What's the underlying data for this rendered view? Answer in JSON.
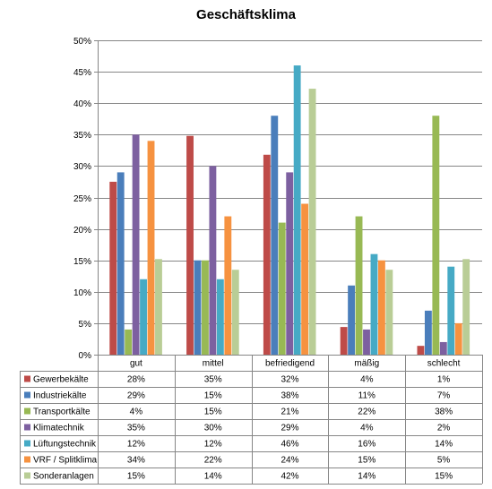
{
  "chart_data": {
    "type": "bar",
    "title": "Geschäftsklima",
    "categories": [
      "gut",
      "mittel",
      "befriedigend",
      "mäßig",
      "schlecht"
    ],
    "ylim": [
      0,
      50
    ],
    "yticks": [
      "0%",
      "5%",
      "10%",
      "15%",
      "20%",
      "25%",
      "30%",
      "35%",
      "40%",
      "45%",
      "50%"
    ],
    "grid": true,
    "legend": "data table below plot",
    "series": [
      {
        "name": "Gewerbekälte",
        "color": "#be4b48",
        "values": [
          27.5,
          34.8,
          31.8,
          4.4,
          1.4
        ],
        "labels": [
          "28%",
          "35%",
          "32%",
          "4%",
          "1%"
        ]
      },
      {
        "name": "Industriekälte",
        "color": "#4a7ebb",
        "values": [
          29.0,
          15.0,
          38.0,
          11.0,
          7.0
        ],
        "labels": [
          "29%",
          "15%",
          "38%",
          "11%",
          "7%"
        ]
      },
      {
        "name": "Transportkälte",
        "color": "#98b954",
        "values": [
          4.0,
          15.0,
          21.0,
          22.0,
          38.0
        ],
        "labels": [
          "4%",
          "15%",
          "21%",
          "22%",
          "38%"
        ]
      },
      {
        "name": "Klimatechnik",
        "color": "#7d60a0",
        "values": [
          35.0,
          30.0,
          29.0,
          4.0,
          2.0
        ],
        "labels": [
          "35%",
          "30%",
          "29%",
          "4%",
          "2%"
        ]
      },
      {
        "name": "Lüftungstechnik",
        "color": "#46aac5",
        "values": [
          12.0,
          12.0,
          46.0,
          16.0,
          14.0
        ],
        "labels": [
          "12%",
          "12%",
          "46%",
          "16%",
          "14%"
        ]
      },
      {
        "name": "VRF / Splitklima",
        "color": "#f69240",
        "values": [
          34.0,
          22.0,
          24.0,
          15.0,
          5.0
        ],
        "labels": [
          "34%",
          "22%",
          "24%",
          "15%",
          "5%"
        ]
      },
      {
        "name": "Sonderanlagen",
        "color": "#b9cd96",
        "values": [
          15.2,
          13.5,
          42.3,
          13.5,
          15.2
        ],
        "labels": [
          "15%",
          "14%",
          "42%",
          "14%",
          "15%"
        ]
      }
    ]
  }
}
